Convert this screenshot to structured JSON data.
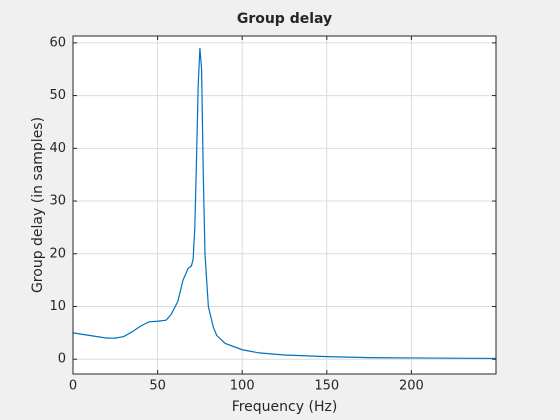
{
  "chart_data": {
    "type": "line",
    "title": "Group delay",
    "x_label": "Frequency (Hz)",
    "y_label": "Group delay (in samples)",
    "x": [
      0,
      10,
      20,
      25,
      30,
      35,
      40,
      45,
      50,
      55,
      58,
      62,
      65,
      68,
      70,
      71,
      72,
      73,
      74,
      75,
      76,
      77,
      78,
      80,
      83,
      85,
      90,
      100,
      110,
      125,
      150,
      175,
      200,
      250
    ],
    "series": [
      {
        "color": "#0072bd",
        "values": [
          5,
          4.5,
          4,
          4,
          4.3,
          5.2,
          6.3,
          7.1,
          7.2,
          7.4,
          8.5,
          11,
          15,
          17.2,
          17.7,
          19,
          25,
          38,
          52,
          59,
          55,
          35,
          20,
          10,
          6,
          4.5,
          3,
          1.8,
          1.2,
          0.8,
          0.5,
          0.3,
          0.25,
          0.15
        ]
      }
    ],
    "xlim": [
      0,
      250
    ],
    "ylim": [
      -2.8,
      61.3
    ],
    "xticks": [
      0,
      50,
      100,
      150,
      200
    ],
    "yticks": [
      0,
      10,
      20,
      30,
      40,
      50,
      60
    ],
    "grid": true
  }
}
